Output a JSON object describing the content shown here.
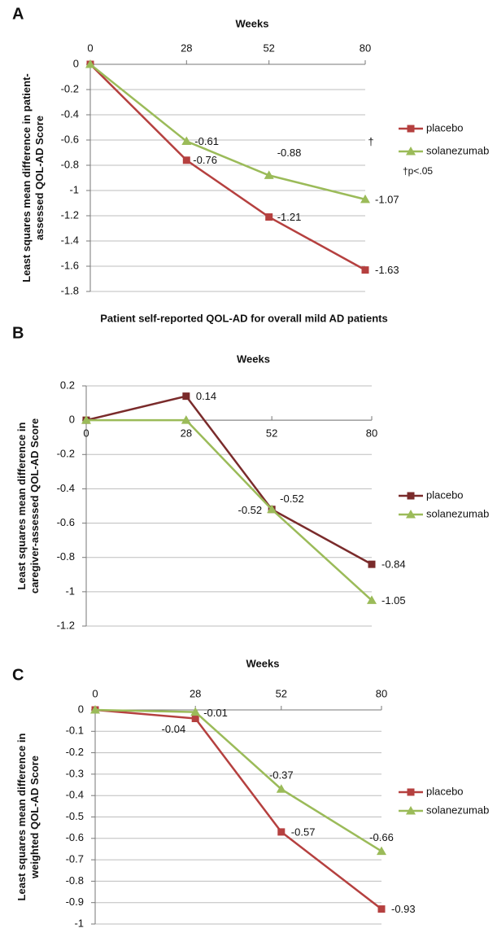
{
  "chart_data": [
    {
      "type": "line",
      "panel": "A",
      "title": "Weeks",
      "y_label": [
        "Least squares mean difference in patient-",
        "assessed QOL-AD Score"
      ],
      "subtitle": "Patient self-reported QOL-AD for overall mild AD patients",
      "x": [
        0,
        28,
        52,
        80
      ],
      "xlim": [
        0,
        80
      ],
      "xticks": [
        0,
        28,
        52,
        80
      ],
      "ylim": [
        -1.8,
        0
      ],
      "yticks": [
        0,
        -0.2,
        -0.4,
        -0.6,
        -0.8,
        -1,
        -1.2,
        -1.4,
        -1.6,
        -1.8
      ],
      "grid": true,
      "series": [
        {
          "name": "placebo",
          "color": "#b5403f",
          "marker": "square",
          "values": [
            0,
            -0.76,
            -1.21,
            -1.63
          ]
        },
        {
          "name": "solanezumab",
          "color": "#9bbb59",
          "marker": "triangle",
          "values": [
            0,
            -0.61,
            -0.88,
            -1.07
          ]
        }
      ],
      "annotations": [
        "†",
        "†p<.05"
      ]
    },
    {
      "type": "line",
      "panel": "B",
      "title": "Weeks",
      "y_label": [
        "Least squares mean difference in",
        "caregiver-assessed QOL-AD Score"
      ],
      "x": [
        0,
        28,
        52,
        80
      ],
      "xlim": [
        0,
        80
      ],
      "xticks": [
        0,
        28,
        52,
        80
      ],
      "ylim": [
        -1.2,
        0.2
      ],
      "yticks": [
        0.2,
        0,
        -0.2,
        -0.4,
        -0.6,
        -0.8,
        -1,
        -1.2
      ],
      "grid": true,
      "series": [
        {
          "name": "placebo",
          "color": "#7a2b2b",
          "marker": "square",
          "values": [
            0,
            0.14,
            -0.52,
            -0.84
          ]
        },
        {
          "name": "solanezumab",
          "color": "#9bbb59",
          "marker": "triangle",
          "values": [
            0,
            0,
            -0.52,
            -1.05
          ]
        }
      ]
    },
    {
      "type": "line",
      "panel": "C",
      "title": "Weeks",
      "y_label": [
        "Least squares mean difference in",
        "weighted QOL-AD Score"
      ],
      "x": [
        0,
        28,
        52,
        80
      ],
      "xlim": [
        0,
        80
      ],
      "xticks": [
        0,
        28,
        52,
        80
      ],
      "ylim": [
        -1,
        0
      ],
      "yticks": [
        0,
        -0.1,
        -0.2,
        -0.3,
        -0.4,
        -0.5,
        -0.6,
        -0.7,
        -0.8,
        -0.9,
        -1
      ],
      "grid": true,
      "series": [
        {
          "name": "placebo",
          "color": "#b5403f",
          "marker": "square",
          "values": [
            0,
            -0.04,
            -0.57,
            -0.93
          ]
        },
        {
          "name": "solanezumab",
          "color": "#9bbb59",
          "marker": "triangle",
          "values": [
            0,
            -0.01,
            -0.37,
            -0.66
          ]
        }
      ]
    }
  ]
}
